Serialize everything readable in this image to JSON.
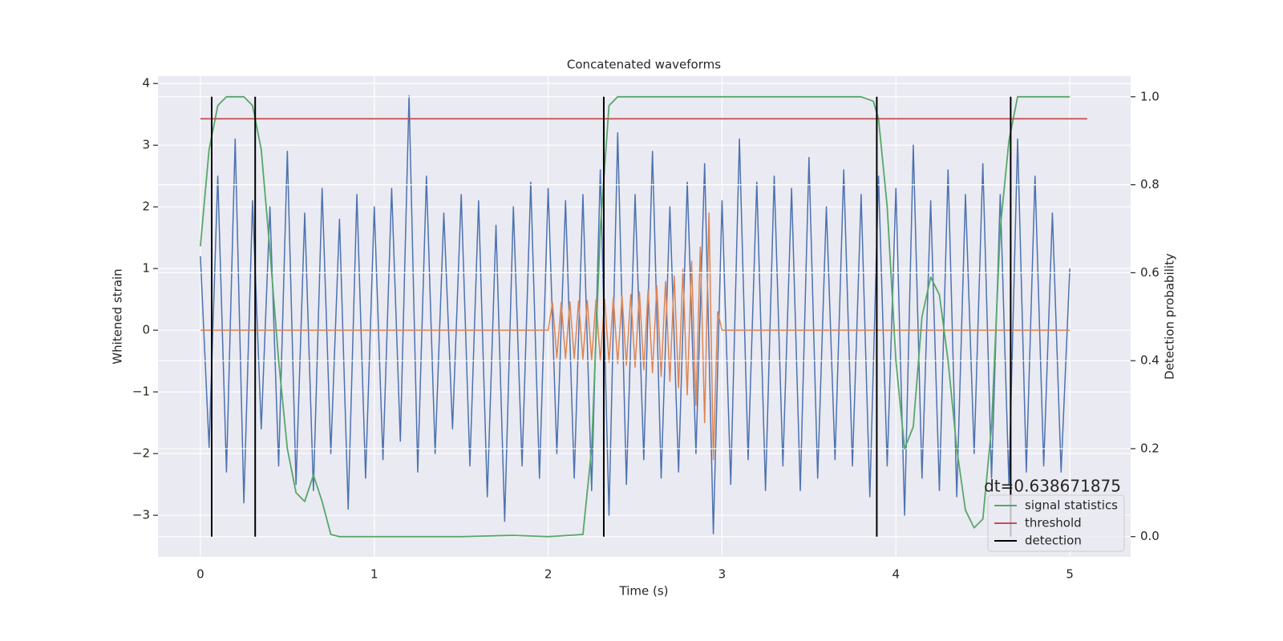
{
  "chart_data": {
    "type": "line",
    "title": "Concatenated waveforms",
    "xlabel": "Time (s)",
    "ylabel": "Whitened strain",
    "y2label": "Detection probability",
    "annotation": "dt=0.638671875",
    "xlim": [
      -0.244,
      5.35
    ],
    "ylim": [
      -3.675,
      4.12
    ],
    "y2lim": [
      -0.046,
      1.047
    ],
    "xticks": [
      0,
      1,
      2,
      3,
      4,
      5
    ],
    "yticks": [
      {
        "value": -3,
        "label": "−3"
      },
      {
        "value": -2,
        "label": "−2"
      },
      {
        "value": -1,
        "label": "−1"
      },
      0,
      1,
      2,
      3,
      4
    ],
    "y2ticks": [
      {
        "value": 0,
        "label": "0.0"
      },
      {
        "value": 0.2,
        "label": "0.2"
      },
      {
        "value": 0.4,
        "label": "0.4"
      },
      {
        "value": 0.6,
        "label": "0.6"
      },
      {
        "value": 0.8,
        "label": "0.8"
      },
      {
        "value": 1,
        "label": "1.0"
      }
    ],
    "grid": true,
    "legend": "lower right",
    "series": [
      {
        "color": "#4c72b0",
        "axis": "y",
        "x": [
          0,
          0.05,
          0.1,
          0.15,
          0.2,
          0.25,
          0.3,
          0.35,
          0.4,
          0.45,
          0.5,
          0.55,
          0.6,
          0.65,
          0.7,
          0.75,
          0.8,
          0.85,
          0.9,
          0.95,
          1.0,
          1.05,
          1.1,
          1.15,
          1.2,
          1.25,
          1.3,
          1.35,
          1.4,
          1.45,
          1.5,
          1.55,
          1.6,
          1.65,
          1.7,
          1.75,
          1.8,
          1.85,
          1.9,
          1.95,
          2.0,
          2.05,
          2.1,
          2.15,
          2.2,
          2.25,
          2.3,
          2.35,
          2.4,
          2.45,
          2.5,
          2.55,
          2.6,
          2.65,
          2.7,
          2.75,
          2.8,
          2.85,
          2.9,
          2.95,
          3.0,
          3.05,
          3.1,
          3.15,
          3.2,
          3.25,
          3.3,
          3.35,
          3.4,
          3.45,
          3.5,
          3.55,
          3.6,
          3.65,
          3.7,
          3.75,
          3.8,
          3.85,
          3.9,
          3.95,
          4.0,
          4.05,
          4.1,
          4.15,
          4.2,
          4.25,
          4.3,
          4.35,
          4.4,
          4.45,
          4.5,
          4.55,
          4.6,
          4.65,
          4.7,
          4.75,
          4.8,
          4.85,
          4.9,
          4.95,
          5.0
        ],
        "values": [
          1.2,
          -1.9,
          2.5,
          -2.3,
          3.1,
          -2.8,
          2.1,
          -1.6,
          2.0,
          -2.2,
          2.9,
          -2.5,
          1.9,
          -2.6,
          2.3,
          -2.0,
          1.8,
          -2.9,
          2.2,
          -2.4,
          2.0,
          -2.1,
          2.3,
          -1.8,
          3.8,
          -2.3,
          2.5,
          -2.0,
          1.9,
          -1.6,
          2.2,
          -2.2,
          2.1,
          -2.7,
          1.7,
          -3.1,
          2.0,
          -2.2,
          2.4,
          -2.4,
          2.3,
          -2.0,
          2.1,
          -2.4,
          2.2,
          -2.6,
          2.6,
          -3.0,
          3.2,
          -2.5,
          2.2,
          -2.1,
          2.9,
          -2.4,
          2.0,
          -2.3,
          2.4,
          -2.0,
          2.7,
          -3.3,
          2.1,
          -2.5,
          3.1,
          -2.1,
          2.4,
          -2.6,
          2.5,
          -2.2,
          2.3,
          -2.6,
          2.8,
          -2.4,
          2.0,
          -2.1,
          2.6,
          -2.2,
          2.2,
          -2.7,
          2.5,
          -2.2,
          2.3,
          -3.0,
          3.0,
          -2.4,
          2.1,
          -2.6,
          2.6,
          -2.7,
          2.2,
          -2.0,
          2.7,
          -2.4,
          2.2,
          -2.5,
          3.1,
          -2.3,
          2.5,
          -2.2,
          1.9,
          -2.3,
          1.0
        ]
      },
      {
        "color": "#dd8452",
        "axis": "y",
        "x": [
          0,
          2.0,
          2.025,
          2.05,
          2.075,
          2.1,
          2.125,
          2.15,
          2.175,
          2.2,
          2.225,
          2.25,
          2.275,
          2.3,
          2.325,
          2.35,
          2.375,
          2.4,
          2.425,
          2.45,
          2.475,
          2.5,
          2.525,
          2.55,
          2.575,
          2.6,
          2.625,
          2.65,
          2.675,
          2.7,
          2.725,
          2.75,
          2.775,
          2.8,
          2.825,
          2.85,
          2.875,
          2.9,
          2.925,
          2.95,
          2.975,
          3.0,
          5.0
        ],
        "values": [
          0,
          0,
          0.45,
          -0.45,
          0.45,
          -0.46,
          0.46,
          -0.46,
          0.47,
          -0.47,
          0.48,
          -0.48,
          0.49,
          -0.5,
          0.5,
          -0.52,
          0.53,
          -0.54,
          0.55,
          -0.57,
          0.58,
          -0.6,
          0.62,
          -0.64,
          0.66,
          -0.69,
          0.72,
          -0.75,
          0.79,
          -0.83,
          0.88,
          -0.93,
          0.99,
          -1.05,
          1.12,
          -1.22,
          1.35,
          -1.5,
          1.9,
          -2.1,
          0.3,
          0,
          0
        ]
      },
      {
        "name": "signal statistics",
        "color": "#55a868",
        "axis": "y2",
        "x": [
          0,
          0.05,
          0.1,
          0.15,
          0.25,
          0.3,
          0.35,
          0.4,
          0.45,
          0.5,
          0.55,
          0.6,
          0.65,
          0.7,
          0.75,
          0.8,
          1.5,
          1.8,
          2.0,
          2.2,
          2.25,
          2.3,
          2.35,
          2.4,
          3.8,
          3.87,
          3.9,
          3.95,
          4.0,
          4.05,
          4.1,
          4.15,
          4.2,
          4.25,
          4.3,
          4.35,
          4.4,
          4.45,
          4.5,
          4.55,
          4.6,
          4.65,
          4.7,
          4.75,
          5.0
        ],
        "values": [
          0.66,
          0.88,
          0.98,
          1.0,
          1.0,
          0.98,
          0.88,
          0.65,
          0.4,
          0.2,
          0.1,
          0.08,
          0.14,
          0.08,
          0.005,
          0,
          0,
          0.003,
          0,
          0.005,
          0.2,
          0.7,
          0.98,
          1.0,
          1.0,
          0.99,
          0.95,
          0.75,
          0.4,
          0.2,
          0.25,
          0.5,
          0.59,
          0.55,
          0.4,
          0.2,
          0.06,
          0.02,
          0.04,
          0.25,
          0.7,
          0.9,
          1.0,
          1.0,
          1.0
        ]
      },
      {
        "name": "threshold",
        "color": "#c44e52",
        "axis": "y2",
        "x": [
          0,
          5.1
        ],
        "values": [
          0.95,
          0.95
        ]
      },
      {
        "name": "detection",
        "color": "#000000",
        "axis": "y2",
        "kind": "vlines",
        "x": [
          0.065,
          0.315,
          2.32,
          3.89,
          4.66
        ],
        "ymin": 0,
        "ymax": 1
      }
    ]
  }
}
